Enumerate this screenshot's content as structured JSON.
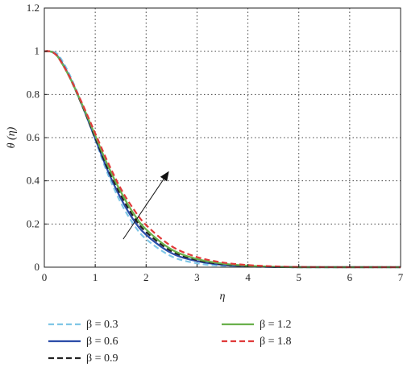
{
  "chart_data": {
    "type": "line",
    "xlabel": "η",
    "ylabel": "θ (η)",
    "xlim": [
      0,
      7
    ],
    "ylim": [
      0,
      1.2
    ],
    "xticks": [
      "0",
      "1",
      "2",
      "3",
      "4",
      "5",
      "6",
      "7"
    ],
    "yticks": [
      "0",
      "0.2",
      "0.4",
      "0.6",
      "0.8",
      "1",
      "1.2"
    ],
    "grid": true,
    "legend_position": "bottom",
    "annotation": "arrow indicating increasing β",
    "series": [
      {
        "name": "β = 0.3",
        "color": "#7fc6e6",
        "dash": "dashed",
        "x": [
          0,
          0.1,
          0.2,
          0.3,
          0.5,
          0.75,
          1,
          1.25,
          1.5,
          1.75,
          2,
          2.5,
          3,
          3.5,
          4,
          4.5,
          5,
          6,
          7
        ],
        "y": [
          1.0,
          1.0,
          0.995,
          0.975,
          0.89,
          0.75,
          0.59,
          0.43,
          0.3,
          0.2,
          0.13,
          0.05,
          0.018,
          0.006,
          0.002,
          0.0005,
          0,
          0,
          0
        ]
      },
      {
        "name": "β = 0.6",
        "color": "#2b4ca8",
        "dash": "solid",
        "x": [
          0,
          0.1,
          0.2,
          0.3,
          0.5,
          0.75,
          1,
          1.25,
          1.5,
          1.75,
          2,
          2.5,
          3,
          3.5,
          4,
          4.5,
          5,
          6,
          7
        ],
        "y": [
          1.0,
          1.0,
          0.99,
          0.965,
          0.88,
          0.745,
          0.595,
          0.445,
          0.32,
          0.22,
          0.15,
          0.065,
          0.028,
          0.011,
          0.004,
          0.001,
          0,
          0,
          0
        ]
      },
      {
        "name": "β = 0.9",
        "color": "#222222",
        "dash": "dashed",
        "x": [
          0,
          0.1,
          0.2,
          0.3,
          0.5,
          0.75,
          1,
          1.25,
          1.5,
          1.75,
          2,
          2.5,
          3,
          3.5,
          4,
          4.5,
          5,
          6,
          7
        ],
        "y": [
          1.0,
          1.0,
          0.99,
          0.963,
          0.878,
          0.745,
          0.6,
          0.455,
          0.335,
          0.235,
          0.163,
          0.074,
          0.033,
          0.014,
          0.005,
          0.0015,
          0,
          0,
          0
        ]
      },
      {
        "name": "β = 1.2",
        "color": "#6ab04c",
        "dash": "solid",
        "x": [
          0,
          0.1,
          0.2,
          0.3,
          0.5,
          0.75,
          1,
          1.25,
          1.5,
          1.75,
          2,
          2.5,
          3,
          3.5,
          4,
          4.5,
          5,
          6,
          7
        ],
        "y": [
          1.0,
          1.0,
          0.99,
          0.962,
          0.878,
          0.75,
          0.61,
          0.47,
          0.35,
          0.25,
          0.175,
          0.082,
          0.038,
          0.017,
          0.007,
          0.002,
          0,
          0,
          0
        ]
      },
      {
        "name": "β = 1.8",
        "color": "#e03a3a",
        "dash": "dashed",
        "x": [
          0,
          0.1,
          0.2,
          0.3,
          0.5,
          0.75,
          1,
          1.25,
          1.5,
          1.75,
          2,
          2.5,
          3,
          3.5,
          4,
          4.5,
          5,
          6,
          7
        ],
        "y": [
          1.0,
          1.0,
          0.99,
          0.962,
          0.88,
          0.755,
          0.62,
          0.485,
          0.365,
          0.27,
          0.195,
          0.097,
          0.047,
          0.022,
          0.01,
          0.004,
          0.001,
          0,
          0
        ]
      }
    ]
  }
}
